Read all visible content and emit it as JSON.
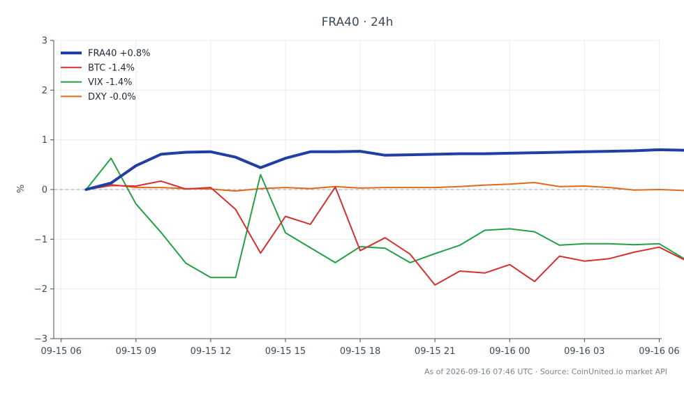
{
  "chart_data": {
    "type": "line",
    "title": "FRA40 · 24h",
    "ylabel": "%",
    "xlabel": "",
    "ylim": [
      -3,
      3
    ],
    "yticks": [
      -3,
      -2,
      -1,
      0,
      1,
      2,
      3
    ],
    "ytick_labels": [
      "−3",
      "−2",
      "−1",
      "0",
      "1",
      "2",
      "3"
    ],
    "x_start": "2026-09-15 07:00",
    "xlim": [
      -0.3,
      24.1
    ],
    "xticks": [
      {
        "pos": 0,
        "label": "09-15 06"
      },
      {
        "pos": 3,
        "label": "09-15 09"
      },
      {
        "pos": 6,
        "label": "09-15 12"
      },
      {
        "pos": 9,
        "label": "09-15 15"
      },
      {
        "pos": 12,
        "label": "09-15 18"
      },
      {
        "pos": 15,
        "label": "09-15 21"
      },
      {
        "pos": 18,
        "label": "09-16 00"
      },
      {
        "pos": 21,
        "label": "09-16 03"
      },
      {
        "pos": 24,
        "label": "09-16 06"
      }
    ],
    "grid": true,
    "legend_position": "top-left",
    "zero_line": true,
    "series": [
      {
        "name": "FRA40 +0.8%",
        "color": "#1f3fa6",
        "width": 4,
        "x": [
          1,
          2,
          3,
          4,
          5,
          6,
          7,
          8,
          9,
          10,
          11,
          12,
          13,
          14,
          15,
          16,
          17,
          18,
          19,
          20,
          21,
          22,
          23,
          24,
          25
        ],
        "values": [
          0.0,
          0.13,
          0.48,
          0.71,
          0.75,
          0.76,
          0.65,
          0.44,
          0.63,
          0.76,
          0.76,
          0.77,
          0.69,
          0.7,
          0.71,
          0.72,
          0.72,
          0.73,
          0.74,
          0.75,
          0.76,
          0.77,
          0.78,
          0.8,
          0.79
        ]
      },
      {
        "name": "BTC -1.4%",
        "color": "#d62f2f",
        "width": 2,
        "x": [
          1,
          2,
          3,
          4,
          5,
          6,
          7,
          8,
          9,
          10,
          11,
          12,
          13,
          14,
          15,
          16,
          17,
          18,
          19,
          20,
          21,
          22,
          23,
          24,
          25
        ],
        "values": [
          0.0,
          0.08,
          0.07,
          0.17,
          0.01,
          0.04,
          -0.4,
          -1.28,
          -0.54,
          -0.7,
          0.05,
          -1.23,
          -0.97,
          -1.3,
          -1.92,
          -1.64,
          -1.68,
          -1.51,
          -1.85,
          -1.34,
          -1.44,
          -1.39,
          -1.26,
          -1.16,
          -1.41
        ]
      },
      {
        "name": "VIX -1.4%",
        "color": "#22a045",
        "width": 2,
        "x": [
          1,
          2,
          3,
          4,
          5,
          6,
          7,
          8,
          9,
          10,
          11,
          12,
          13,
          14,
          15,
          16,
          17,
          18,
          19,
          20,
          21,
          22,
          23,
          24,
          25
        ],
        "values": [
          0.0,
          0.63,
          -0.29,
          -0.86,
          -1.48,
          -1.77,
          -1.77,
          0.3,
          -0.87,
          -1.17,
          -1.47,
          -1.15,
          -1.18,
          -1.47,
          -1.29,
          -1.12,
          -0.82,
          -0.79,
          -0.85,
          -1.12,
          -1.09,
          -1.09,
          -1.11,
          -1.09,
          -1.39
        ]
      },
      {
        "name": "DXY -0.0%",
        "color": "#e06a1c",
        "width": 2,
        "x": [
          1,
          2,
          3,
          4,
          5,
          6,
          7,
          8,
          9,
          10,
          11,
          12,
          13,
          14,
          15,
          16,
          17,
          18,
          19,
          20,
          21,
          22,
          23,
          24,
          25
        ],
        "values": [
          0.0,
          0.1,
          0.04,
          0.04,
          0.02,
          0.01,
          -0.03,
          0.02,
          0.04,
          0.02,
          0.06,
          0.03,
          0.04,
          0.04,
          0.04,
          0.06,
          0.09,
          0.11,
          0.14,
          0.06,
          0.07,
          0.04,
          -0.01,
          0.0,
          -0.02
        ]
      }
    ]
  },
  "footer": "As of 2026-09-16 07:46 UTC · Source: CoinUnited.io market API"
}
